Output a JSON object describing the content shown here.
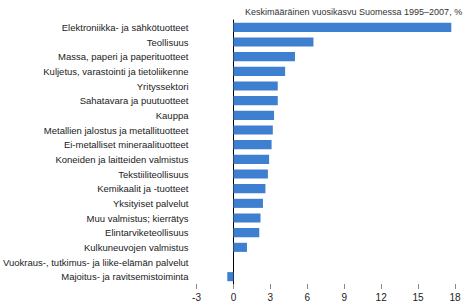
{
  "chart_data": {
    "type": "bar",
    "orientation": "horizontal",
    "title": "Keskimääräinen vuosikasvu Suomessa 1995–2007, %",
    "categories": [
      "Elektroniikka- ja sähkötuotteet",
      "Teollisuus",
      "Massa, paperi ja paperituotteet",
      "Kuljetus, varastointi ja tietoliikenne",
      "Yrityssektori",
      "Sahatavara ja puutuotteet",
      "Kauppa",
      "Metallien jalostus ja metallituotteet",
      "Ei-metalliset mineraalituotteet",
      "Koneiden ja laitteiden valmistus",
      "Tekstiiliteollisuus",
      "Kemikaalit ja -tuotteet",
      "Yksityiset palvelut",
      "Muu valmistus; kierrätys",
      "Elintarviketeollisuus",
      "Kulkuneuvojen valmistus",
      "Vuokraus-, tutkimus- ja liike-elämän palvelut",
      "Majoitus- ja ravitsemistoiminta"
    ],
    "values": [
      17.7,
      6.5,
      5.0,
      4.2,
      3.6,
      3.6,
      3.3,
      3.2,
      3.1,
      2.9,
      2.8,
      2.6,
      2.4,
      2.2,
      2.1,
      1.1,
      0.0,
      -0.5
    ],
    "color": "#3f7fcf",
    "xlim": [
      -3,
      18
    ],
    "xticks": [
      -3,
      0,
      3,
      6,
      9,
      12,
      15,
      18
    ],
    "grid": false
  }
}
